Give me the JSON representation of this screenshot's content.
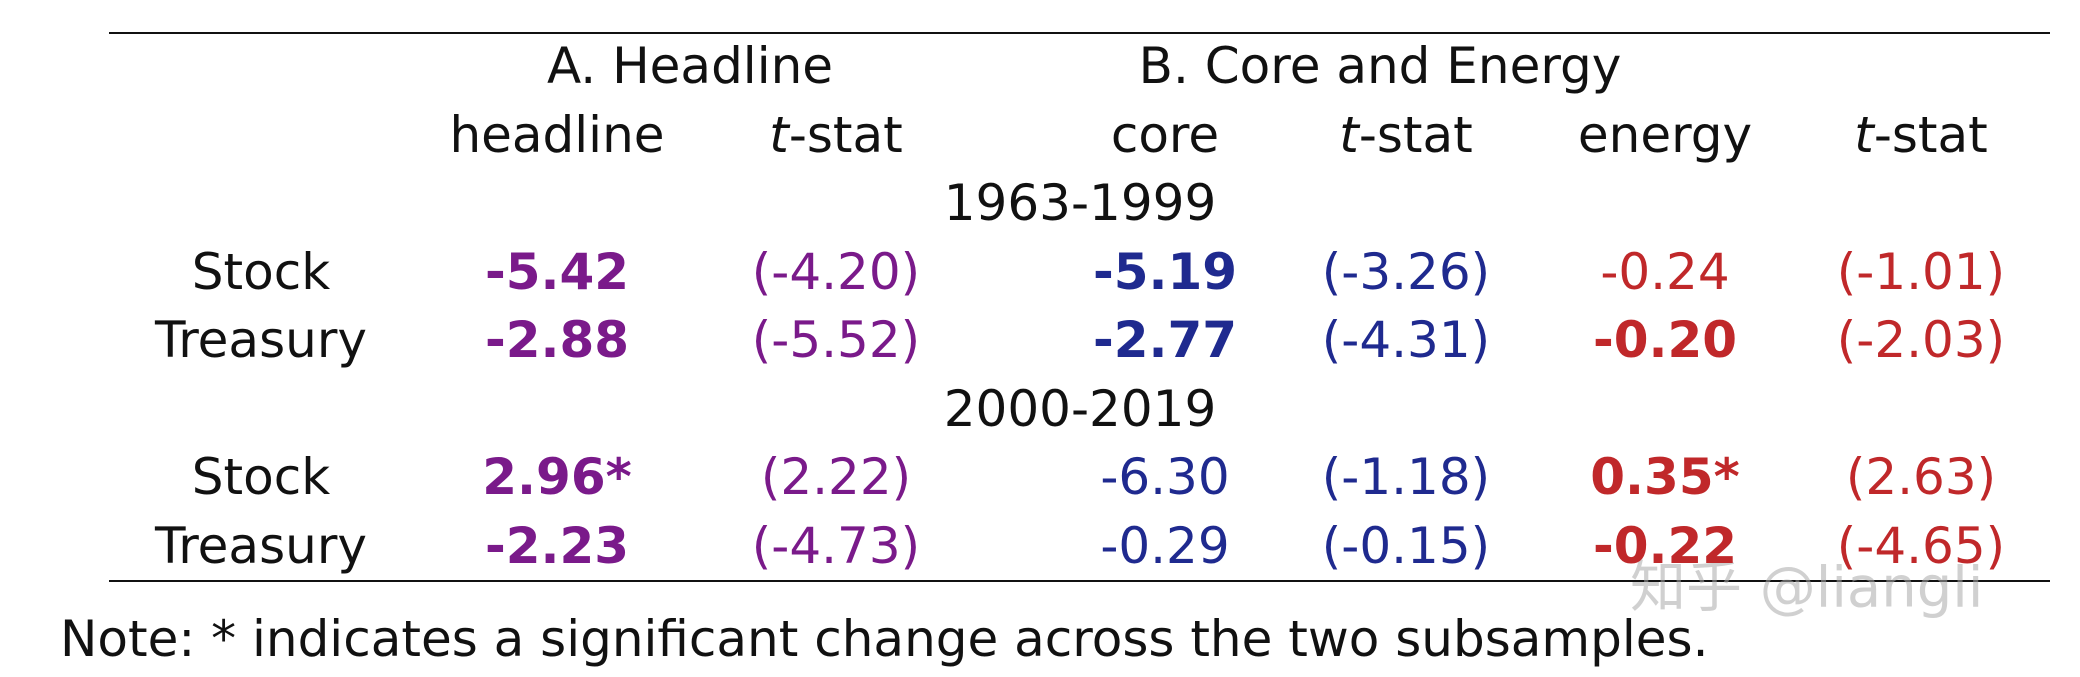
{
  "header": {
    "groups": [
      "A. Headline",
      "B. Core and Energy"
    ],
    "columns": [
      "headline",
      "t-stat",
      "core",
      "t-stat",
      "energy",
      "t-stat"
    ]
  },
  "table": {
    "sections": [
      {
        "period": "1963-1999",
        "rows": [
          {
            "label": "Stock",
            "cells": [
              "-5.42",
              "(-4.20)",
              "-5.19",
              "(-3.26)",
              "-0.24",
              "(-1.01)"
            ]
          },
          {
            "label": "Treasury",
            "cells": [
              "-2.88",
              "(-5.52)",
              "-2.77",
              "(-4.31)",
              "-0.20",
              "(-2.03)"
            ]
          }
        ]
      },
      {
        "period": "2000-2019",
        "rows": [
          {
            "label": "Stock",
            "cells": [
              "2.96*",
              "(2.22)",
              "-6.30",
              "(-1.18)",
              "0.35*",
              "(2.63)"
            ]
          },
          {
            "label": "Treasury",
            "cells": [
              "-2.23",
              "(-4.73)",
              "-0.29",
              "(-0.15)",
              "-0.22",
              "(-4.65)"
            ]
          }
        ]
      }
    ]
  },
  "note": "Note: * indicates a significant change across the two subsamples.",
  "watermark": "知乎 @liangli"
}
